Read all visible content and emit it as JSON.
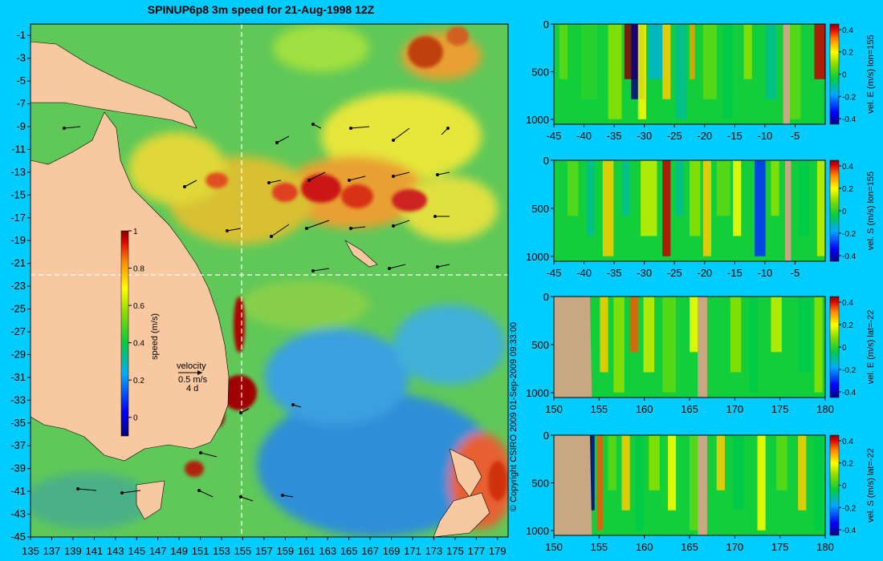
{
  "colors": {
    "background": "#00ccff",
    "land": "#f8c8a0",
    "bathy_mask": "#c8a882"
  },
  "chart_data": [
    {
      "type": "heatmap",
      "name": "surface-speed-map",
      "title": "SPINUP6p8 3m speed for 21-Aug-1998 12Z",
      "xlim": [
        135,
        180
      ],
      "ylim": [
        -45,
        0
      ],
      "x_ticks": [
        "135",
        "137",
        "139",
        "141",
        "143",
        "145",
        "147",
        "149",
        "151",
        "153",
        "155",
        "157",
        "159",
        "161",
        "163",
        "165",
        "167",
        "169",
        "171",
        "173",
        "175",
        "177",
        "179"
      ],
      "y_ticks": [
        "-1",
        "-3",
        "-5",
        "-7",
        "-9",
        "-11",
        "-13",
        "-15",
        "-17",
        "-19",
        "-21",
        "-23",
        "-25",
        "-27",
        "-29",
        "-31",
        "-33",
        "-35",
        "-37",
        "-39",
        "-41",
        "-43",
        "-45"
      ],
      "colorbar": {
        "label": "speed (m/s)",
        "range": [
          -0.1,
          1.0
        ],
        "ticks": [
          "1",
          "0.8",
          "0.6",
          "0.4",
          "0.2",
          "0"
        ]
      },
      "legend": {
        "title": "velocity",
        "scale_speed": "0.5 m/s",
        "scale_time": "4 d"
      },
      "section_lines": {
        "lon": 155,
        "lat": -22
      },
      "copyright": "© Copyright CSIRO 2009   01-Sep-2009 09:33:00"
    },
    {
      "type": "heatmap",
      "name": "vel-E-lon155",
      "colorbar_label": "vel. E (m/s) lon=155",
      "xlim": [
        -45,
        0
      ],
      "ylim": [
        1050,
        0
      ],
      "x_ticks": [
        "-45",
        "-40",
        "-35",
        "-30",
        "-25",
        "-20",
        "-15",
        "-10",
        "-5"
      ],
      "y_ticks": [
        "0",
        "500",
        "1000"
      ],
      "colorbar_ticks": [
        "0.4",
        "0.2",
        "0",
        "-0.2",
        "-0.4"
      ],
      "range": [
        -0.45,
        0.45
      ]
    },
    {
      "type": "heatmap",
      "name": "vel-S-lon155",
      "colorbar_label": "vel. S (m/s) lon=155",
      "xlim": [
        -45,
        0
      ],
      "ylim": [
        1050,
        0
      ],
      "x_ticks": [
        "-45",
        "-40",
        "-35",
        "-30",
        "-25",
        "-20",
        "-15",
        "-10",
        "-5"
      ],
      "y_ticks": [
        "0",
        "500",
        "1000"
      ],
      "colorbar_ticks": [
        "0.4",
        "0.2",
        "0",
        "-0.2",
        "-0.4"
      ],
      "range": [
        -0.45,
        0.45
      ]
    },
    {
      "type": "heatmap",
      "name": "vel-E-lat-22",
      "colorbar_label": "vel. E (m/s) lat=-22",
      "xlim": [
        150,
        180
      ],
      "ylim": [
        1050,
        0
      ],
      "x_ticks": [
        "150",
        "155",
        "160",
        "165",
        "170",
        "175",
        "180"
      ],
      "y_ticks": [
        "0",
        "500",
        "1000"
      ],
      "colorbar_ticks": [
        "0.4",
        "0.2",
        "0",
        "-0.2",
        "-0.4"
      ],
      "range": [
        -0.45,
        0.45
      ]
    },
    {
      "type": "heatmap",
      "name": "vel-S-lat-22",
      "colorbar_label": "vel. S (m/s) lat=-22",
      "xlim": [
        150,
        180
      ],
      "ylim": [
        1050,
        0
      ],
      "x_ticks": [
        "150",
        "155",
        "160",
        "165",
        "170",
        "175",
        "180"
      ],
      "y_ticks": [
        "0",
        "500",
        "1000"
      ],
      "colorbar_ticks": [
        "0.4",
        "0.2",
        "0",
        "-0.2",
        "-0.4"
      ],
      "range": [
        -0.45,
        0.45
      ]
    }
  ]
}
